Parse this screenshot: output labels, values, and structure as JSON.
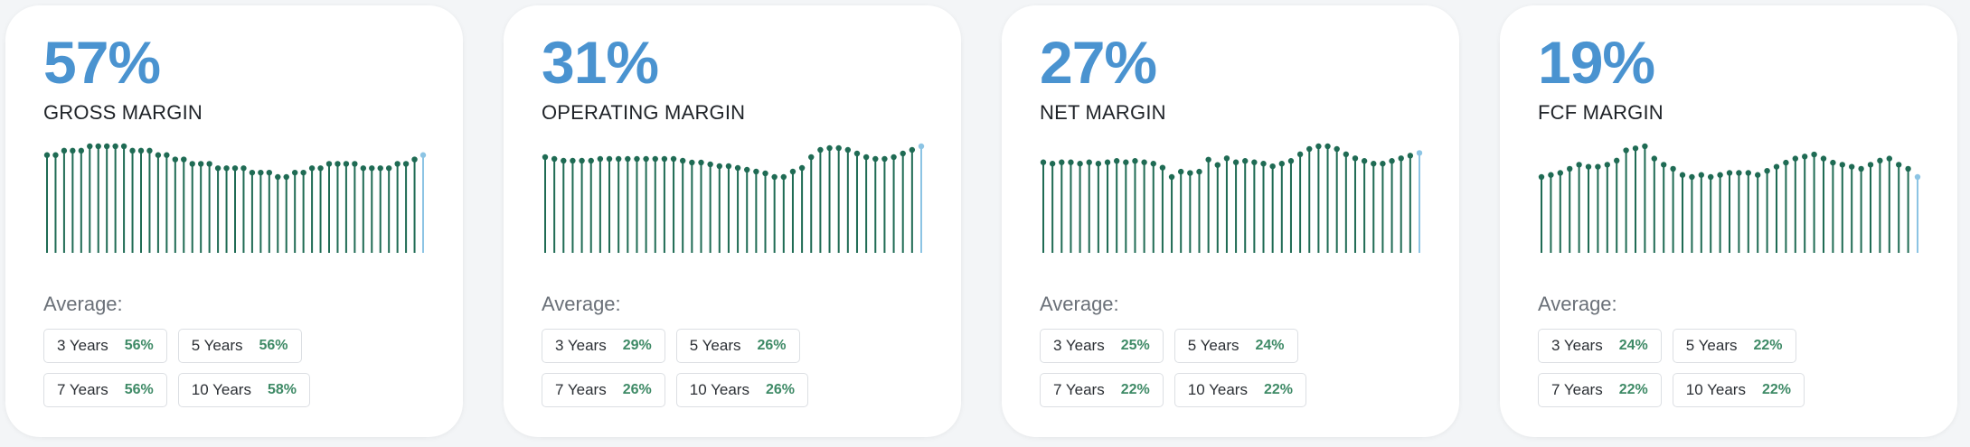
{
  "theme": {
    "value_color": "#4a93d0",
    "bar_color": "#1f6b54",
    "latest_color": "#8cc4e4",
    "avg_value_color": "#3e8a66"
  },
  "average_label": "Average:",
  "cards": [
    {
      "value": "57%",
      "label": "GROSS MARGIN",
      "chart_data": {
        "type": "bar",
        "values": [
          56,
          56,
          57,
          57,
          57,
          58,
          58,
          58,
          58,
          58,
          57,
          57,
          57,
          56,
          56,
          55,
          55,
          54,
          54,
          54,
          53,
          53,
          53,
          53,
          52,
          52,
          52,
          51,
          51,
          52,
          52,
          53,
          53,
          54,
          54,
          54,
          54,
          53,
          53,
          53,
          53,
          54,
          54,
          55,
          56
        ]
      },
      "averages": [
        {
          "period": "3 Years",
          "value": "56%"
        },
        {
          "period": "5 Years",
          "value": "56%"
        },
        {
          "period": "7 Years",
          "value": "56%"
        },
        {
          "period": "10 Years",
          "value": "58%"
        }
      ]
    },
    {
      "value": "31%",
      "label": "OPERATING MARGIN",
      "chart_data": {
        "type": "bar",
        "values": [
          26,
          25,
          24,
          24,
          24,
          24,
          25,
          25,
          25,
          25,
          25,
          25,
          25,
          25,
          25,
          24,
          23,
          23,
          22,
          21,
          21,
          20,
          19,
          18,
          17,
          15,
          15,
          18,
          20,
          26,
          30,
          31,
          31,
          30,
          28,
          26,
          25,
          25,
          26,
          28,
          30,
          32
        ]
      },
      "averages": [
        {
          "period": "3 Years",
          "value": "29%"
        },
        {
          "period": "5 Years",
          "value": "26%"
        },
        {
          "period": "7 Years",
          "value": "26%"
        },
        {
          "period": "10 Years",
          "value": "26%"
        }
      ]
    },
    {
      "value": "27%",
      "label": "NET MARGIN",
      "chart_data": {
        "type": "bar",
        "values": [
          22,
          21,
          22,
          22,
          21,
          22,
          21,
          22,
          23,
          22,
          23,
          22,
          21,
          18,
          11,
          15,
          14,
          15,
          24,
          20,
          25,
          22,
          23,
          22,
          21,
          19,
          21,
          23,
          28,
          32,
          34,
          34,
          32,
          28,
          25,
          23,
          21,
          21,
          23,
          25,
          27,
          29
        ]
      },
      "averages": [
        {
          "period": "3 Years",
          "value": "25%"
        },
        {
          "period": "5 Years",
          "value": "24%"
        },
        {
          "period": "7 Years",
          "value": "22%"
        },
        {
          "period": "10 Years",
          "value": "22%"
        }
      ]
    },
    {
      "value": "19%",
      "label": "FCF MARGIN",
      "chart_data": {
        "type": "bar",
        "values": [
          19,
          20,
          21,
          23,
          25,
          24,
          24,
          25,
          27,
          32,
          33,
          34,
          28,
          25,
          23,
          20,
          19,
          20,
          19,
          20,
          21,
          21,
          21,
          20,
          22,
          24,
          26,
          28,
          29,
          30,
          28,
          26,
          25,
          24,
          23,
          25,
          27,
          28,
          25,
          23,
          19
        ]
      },
      "averages": [
        {
          "period": "3 Years",
          "value": "24%"
        },
        {
          "period": "5 Years",
          "value": "22%"
        },
        {
          "period": "7 Years",
          "value": "22%"
        },
        {
          "period": "10 Years",
          "value": "22%"
        }
      ]
    }
  ]
}
